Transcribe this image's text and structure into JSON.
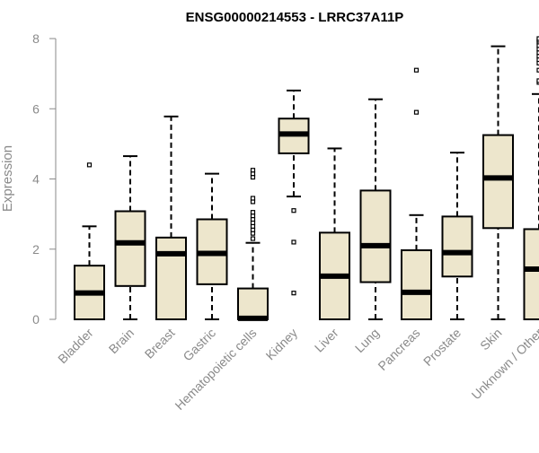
{
  "chart_data": {
    "type": "box",
    "title": "ENSG00000214553 - LRRC37A11P",
    "ylabel": "Expression",
    "xlabel": "",
    "ylim": [
      0,
      8
    ],
    "yticks": [
      0,
      2,
      4,
      6,
      8
    ],
    "grid": false,
    "legend": "none",
    "colors": {
      "box_fill": "#ede6cc",
      "stroke": "#000000",
      "axis": "#8a8a8a",
      "title": "#000000"
    },
    "categories": [
      "Bladder",
      "Brain",
      "Breast",
      "Gastric",
      "Hematopoietic cells",
      "Kidney",
      "Liver",
      "Lung",
      "Pancreas",
      "Prostate",
      "Skin",
      "Unknown / Other"
    ],
    "boxes": [
      {
        "category": "Bladder",
        "whisker_low": 0,
        "q1": 0,
        "median": 0.75,
        "q3": 1.53,
        "whisker_high": 2.65,
        "outliers": [
          4.4
        ]
      },
      {
        "category": "Brain",
        "whisker_low": 0,
        "q1": 0.95,
        "median": 2.18,
        "q3": 3.08,
        "whisker_high": 4.65,
        "outliers": []
      },
      {
        "category": "Breast",
        "whisker_low": 0,
        "q1": 0,
        "median": 1.87,
        "q3": 2.33,
        "whisker_high": 5.78,
        "outliers": []
      },
      {
        "category": "Gastric",
        "whisker_low": 0,
        "q1": 1.0,
        "median": 1.88,
        "q3": 2.85,
        "whisker_high": 4.15,
        "outliers": []
      },
      {
        "category": "Hematopoietic cells",
        "whisker_low": 0,
        "q1": 0,
        "median": 0.03,
        "q3": 0.88,
        "whisker_high": 2.18,
        "outliers": [
          2.3,
          2.45,
          2.55,
          2.65,
          2.75,
          2.85,
          2.95,
          3.05,
          3.35,
          3.45,
          4.05,
          4.15,
          4.25
        ]
      },
      {
        "category": "Kidney",
        "whisker_low": 3.5,
        "q1": 4.73,
        "median": 5.28,
        "q3": 5.72,
        "whisker_high": 6.52,
        "outliers": [
          3.1,
          2.2,
          0.75
        ]
      },
      {
        "category": "Liver",
        "whisker_low": 0,
        "q1": 0,
        "median": 1.23,
        "q3": 2.47,
        "whisker_high": 4.87,
        "outliers": []
      },
      {
        "category": "Lung",
        "whisker_low": 0,
        "q1": 1.06,
        "median": 2.1,
        "q3": 3.67,
        "whisker_high": 6.27,
        "outliers": []
      },
      {
        "category": "Pancreas",
        "whisker_low": 0,
        "q1": 0,
        "median": 0.77,
        "q3": 1.97,
        "whisker_high": 2.97,
        "outliers": [
          5.9,
          7.1
        ]
      },
      {
        "category": "Prostate",
        "whisker_low": 0,
        "q1": 1.22,
        "median": 1.9,
        "q3": 2.93,
        "whisker_high": 4.75,
        "outliers": []
      },
      {
        "category": "Skin",
        "whisker_low": 0,
        "q1": 2.6,
        "median": 4.03,
        "q3": 5.25,
        "whisker_high": 7.78,
        "outliers": []
      },
      {
        "category": "Unknown / Other",
        "whisker_low": 0,
        "q1": 0,
        "median": 1.43,
        "q3": 2.57,
        "whisker_high": 6.42,
        "outliers": [
          6.75,
          6.8,
          7.1,
          7.3,
          7.4,
          7.5,
          7.6,
          7.7,
          7.8,
          7.9,
          7.95,
          8.0
        ]
      }
    ]
  }
}
